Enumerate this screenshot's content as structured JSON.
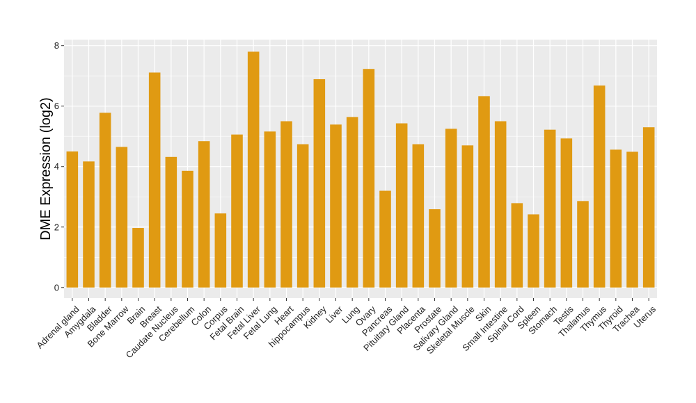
{
  "chart_data": {
    "type": "bar",
    "ylabel": "DME Expression (log2)",
    "xlabel": "",
    "ylim": [
      -0.35,
      8.2
    ],
    "yticks": [
      0,
      2,
      4,
      6,
      8
    ],
    "grid": true,
    "bar_color": "#E09A12",
    "panel_color": "#EBEBEB",
    "categories": [
      "Adrenal gland",
      "Amygdala",
      "Bladder",
      "Bone Marrow",
      "Brain",
      "Breast",
      "Caudate Nucleus",
      "Cerebellum",
      "Colon",
      "Corpus",
      "Fetal Brain",
      "Fetal Liver",
      "Fetal Lung",
      "Heart",
      "hippocampus",
      "Kidney",
      "Liver",
      "Lung",
      "Ovary",
      "Pancreas",
      "Pituitary Gland",
      "Placenta",
      "Prostate",
      "Salivary Gland",
      "Skeletal Muscle",
      "Skin",
      "Small Intestine",
      "Spinal Cord",
      "Spleen",
      "Stomach",
      "Testis",
      "Thalamus",
      "Thymus",
      "Thyroid",
      "Trachea",
      "Uterus"
    ],
    "values": [
      4.5,
      4.17,
      5.78,
      4.65,
      1.97,
      7.11,
      4.32,
      3.86,
      4.84,
      2.45,
      5.06,
      7.8,
      5.16,
      5.5,
      4.74,
      6.89,
      5.39,
      5.64,
      7.23,
      3.2,
      5.43,
      4.74,
      2.59,
      5.25,
      4.7,
      6.33,
      5.5,
      2.79,
      2.42,
      5.22,
      4.93,
      2.86,
      6.68,
      4.56,
      4.49,
      5.3
    ]
  }
}
